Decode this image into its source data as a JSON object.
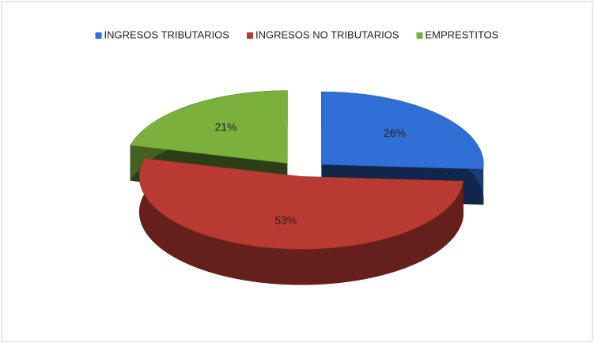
{
  "chart_data": {
    "type": "pie",
    "threed": true,
    "legend": "top",
    "categories": [
      "INGRESOS TRIBUTARIOS",
      "INGRESOS NO TRIBUTARIOS",
      "EMPRESTITOS"
    ],
    "values": [
      26,
      53,
      21
    ],
    "value_labels": [
      "26%",
      "53%",
      "21%"
    ],
    "colors": [
      "#2f6fd6",
      "#b93a32",
      "#7cb03c"
    ]
  }
}
